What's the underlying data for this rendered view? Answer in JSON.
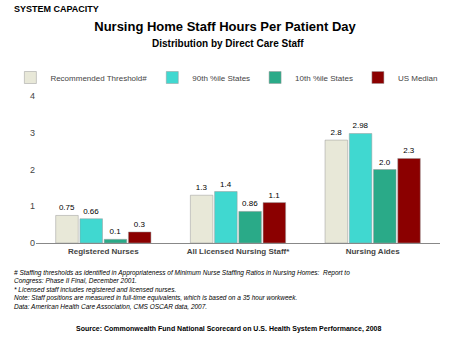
{
  "chart_data": {
    "type": "bar",
    "title": "Nursing Home Staff Hours Per Patient Day",
    "subtitle": "Distribution by Direct Care Staff",
    "annotations": [
      "SYSTEM CAPACITY",
      "# Staffing thresholds as identified in Appropriateness of Minimum Nurse Staffing Ratios in Nursing Homes:  Report to",
      "Congress: Phase II Final, December 2001.",
      "* Licensed staff includes registered and licensed nurses.",
      "Note: Staff positions are measured in full-time equivalents, which is based on a 35 hour workweek.",
      "Data: American Health Care Association, CMS OSCAR data, 2007.",
      "Source: Commonwealth Fund National Scorecard on U.S. Health System Performance, 2008"
    ],
    "categories": [
      "Registered Nurses",
      "All Licensed Nursing Staff*",
      "Nursing Aides"
    ],
    "series": [
      {
        "name": "Recommended Threshold#",
        "color": "#e8e8d8",
        "values": [
          0.75,
          1.3,
          2.8
        ]
      },
      {
        "name": "90th %ile States",
        "color": "#40d8d0",
        "values": [
          0.66,
          1.4,
          2.98
        ]
      },
      {
        "name": "10th %ile States",
        "color": "#2aaa88",
        "values": [
          0.1,
          0.86,
          2
        ],
        "value_labels": [
          "0.1",
          "0.86",
          "2.0"
        ]
      },
      {
        "name": "US Median",
        "color": "#8b0000",
        "values": [
          0.3,
          1.1,
          2.3
        ]
      }
    ],
    "ylim": [
      0,
      4
    ],
    "yticks": [
      0,
      1,
      2,
      3,
      4
    ],
    "grid": false,
    "legend": "top",
    "data_labels": true
  }
}
